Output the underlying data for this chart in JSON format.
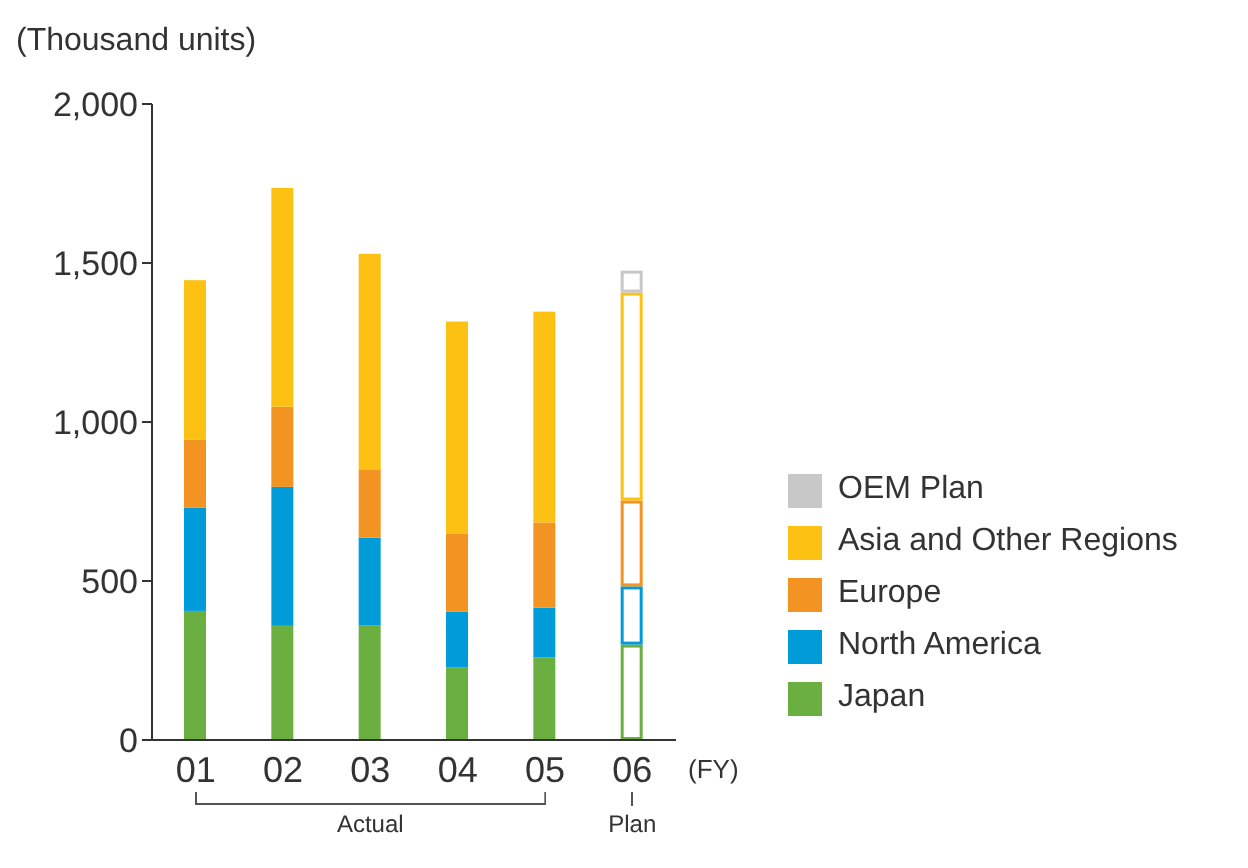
{
  "chart_data": {
    "type": "bar",
    "stacked": true,
    "ylabel": "(Thousand units)",
    "xlabel": "(FY)",
    "categories": [
      "01",
      "02",
      "03",
      "04",
      "05",
      "06"
    ],
    "series": [
      {
        "name": "Japan",
        "color": "#6aaf3f",
        "values": [
          406,
          359,
          361,
          229,
          260,
          300
        ]
      },
      {
        "name": "North America",
        "color": "#009bd9",
        "values": [
          325,
          437,
          275,
          175,
          156,
          183
        ]
      },
      {
        "name": "Europe",
        "color": "#f39321",
        "values": [
          213,
          252,
          213,
          244,
          268,
          270
        ]
      },
      {
        "name": "Asia and Other Regions",
        "color": "#fdc113",
        "values": [
          502,
          688,
          680,
          668,
          663,
          654
        ]
      },
      {
        "name": "OEM Plan",
        "color": "#c8c8c8",
        "values": [
          null,
          null,
          null,
          null,
          null,
          69
        ]
      }
    ],
    "ylim": [
      0,
      2000
    ],
    "yticks": [
      0,
      {
        "value": 500,
        "label": "500"
      },
      {
        "value": 1000,
        "label": "1,000"
      },
      {
        "value": 1500,
        "label": "1,500"
      },
      {
        "value": 2000,
        "label": "2,000"
      }
    ],
    "grid": false,
    "legend": "right",
    "annotations": [
      "Actual",
      "Plan"
    ]
  }
}
